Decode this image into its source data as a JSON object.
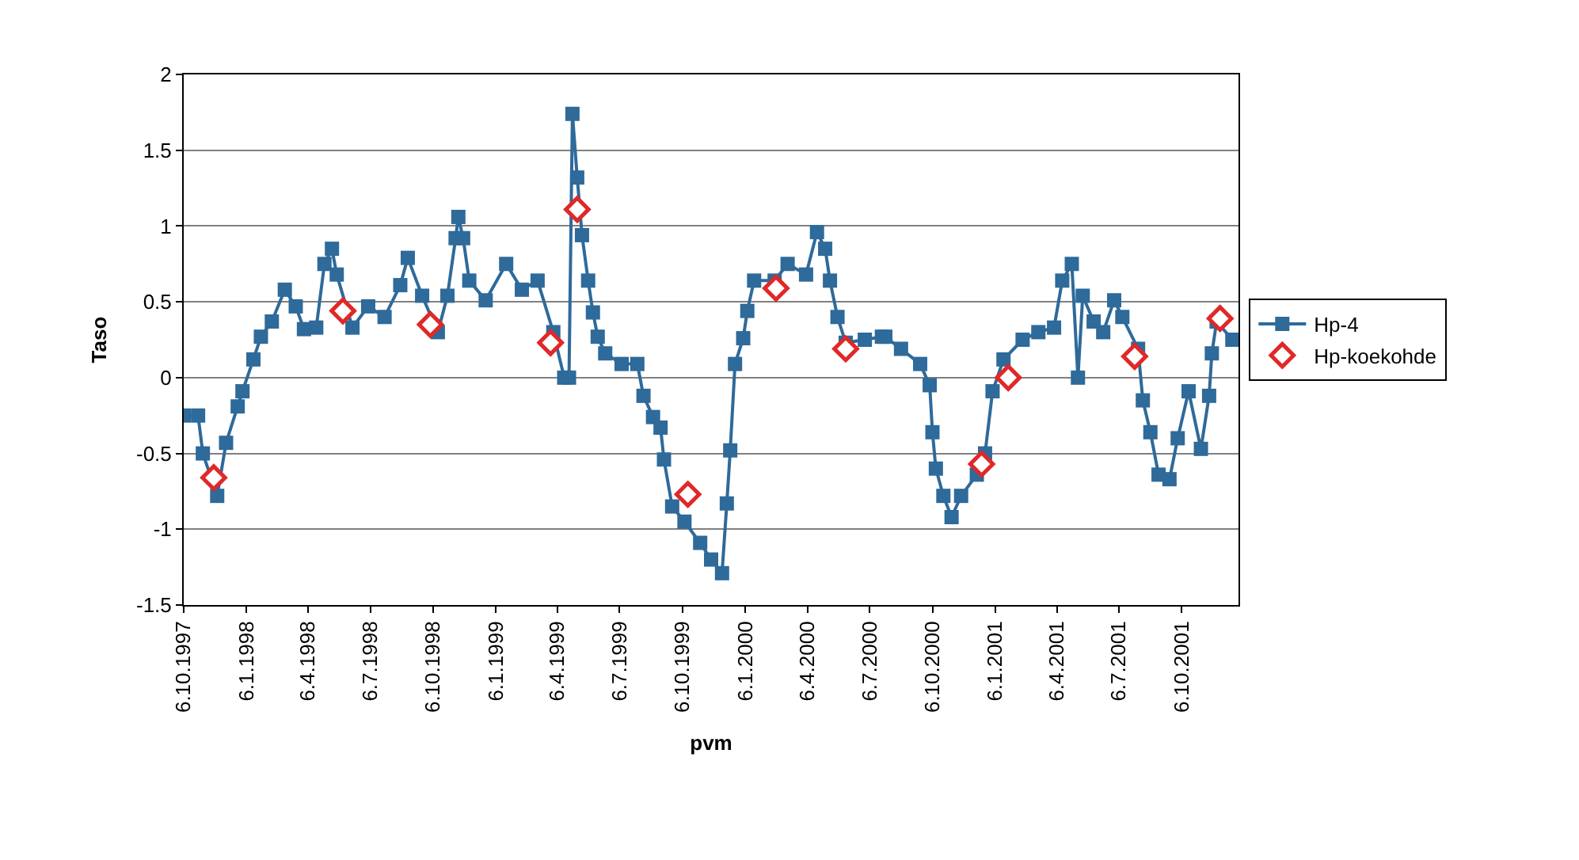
{
  "chart_data": {
    "type": "line",
    "xlabel": "pvm",
    "ylabel": "Taso",
    "xlim": [
      "1997-10-06",
      "2001-12-28"
    ],
    "xticks": [
      {
        "value": "1997-10-06",
        "label": "6.10.1997"
      },
      {
        "value": "1998-01-06",
        "label": "6.1.1998"
      },
      {
        "value": "1998-04-06",
        "label": "6.4.1998"
      },
      {
        "value": "1998-07-06",
        "label": "6.7.1998"
      },
      {
        "value": "1998-10-06",
        "label": "6.10.1998"
      },
      {
        "value": "1999-01-06",
        "label": "6.1.1999"
      },
      {
        "value": "1999-04-06",
        "label": "6.4.1999"
      },
      {
        "value": "1999-07-06",
        "label": "6.7.1999"
      },
      {
        "value": "1999-10-06",
        "label": "6.10.1999"
      },
      {
        "value": "2000-01-06",
        "label": "6.1.2000"
      },
      {
        "value": "2000-04-06",
        "label": "6.4.2000"
      },
      {
        "value": "2000-07-06",
        "label": "6.7.2000"
      },
      {
        "value": "2000-10-06",
        "label": "6.10.2000"
      },
      {
        "value": "2001-01-06",
        "label": "6.1.2001"
      },
      {
        "value": "2001-04-06",
        "label": "6.4.2001"
      },
      {
        "value": "2001-07-06",
        "label": "6.7.2001"
      },
      {
        "value": "2001-10-06",
        "label": "6.10.2001"
      }
    ],
    "ylim": [
      -1.5,
      2
    ],
    "yticks": [
      -1.5,
      -1,
      -0.5,
      0,
      0.5,
      1,
      1.5,
      2
    ],
    "grid": "y",
    "legend": "right",
    "line_style": "solid",
    "series": [
      {
        "name": "Hp-4",
        "color": "#2e6a9a",
        "marker": "square",
        "x": [
          "1997-10-06",
          "1997-10-27",
          "1997-11-03",
          "1997-11-24",
          "1997-12-07",
          "1997-12-24",
          "1997-12-31",
          "1998-01-16",
          "1998-01-27",
          "1998-02-12",
          "1998-03-03",
          "1998-03-19",
          "1998-03-31",
          "1998-04-18",
          "1998-04-30",
          "1998-05-11",
          "1998-05-18",
          "1998-06-10",
          "1998-07-03",
          "1998-07-27",
          "1998-08-19",
          "1998-08-30",
          "1998-09-20",
          "1998-10-13",
          "1998-10-27",
          "1998-11-08",
          "1998-11-12",
          "1998-11-19",
          "1998-11-28",
          "1998-12-22",
          "1999-01-21",
          "1999-02-13",
          "1999-03-08",
          "1999-03-31",
          "1999-04-16",
          "1999-04-23",
          "1999-04-28",
          "1999-05-05",
          "1999-05-12",
          "1999-05-21",
          "1999-05-28",
          "1999-06-04",
          "1999-06-15",
          "1999-07-09",
          "1999-08-01",
          "1999-08-10",
          "1999-08-24",
          "1999-09-04",
          "1999-09-09",
          "1999-09-21",
          "1999-10-09",
          "1999-11-01",
          "1999-11-17",
          "1999-12-03",
          "1999-12-10",
          "1999-12-15",
          "1999-12-22",
          "2000-01-03",
          "2000-01-09",
          "2000-01-19",
          "2000-02-18",
          "2000-03-08",
          "2000-04-04",
          "2000-04-20",
          "2000-05-02",
          "2000-05-09",
          "2000-05-20",
          "2000-06-01",
          "2000-06-29",
          "2000-07-24",
          "2000-07-29",
          "2000-08-21",
          "2000-09-18",
          "2000-10-02",
          "2000-10-06",
          "2000-10-11",
          "2000-10-22",
          "2000-11-03",
          "2000-11-17",
          "2000-12-10",
          "2000-12-22",
          "2001-01-02",
          "2001-01-18",
          "2001-02-15",
          "2001-03-10",
          "2001-04-02",
          "2001-04-14",
          "2001-04-28",
          "2001-05-07",
          "2001-05-14",
          "2001-05-30",
          "2001-06-13",
          "2001-06-29",
          "2001-07-11",
          "2001-08-03",
          "2001-08-10",
          "2001-08-21",
          "2001-09-02",
          "2001-09-18",
          "2001-09-30",
          "2001-10-16",
          "2001-11-03",
          "2001-11-15",
          "2001-11-19",
          "2001-11-26",
          "2001-12-19"
        ],
        "values": [
          -0.25,
          -0.25,
          -0.5,
          -0.78,
          -0.43,
          -0.19,
          -0.09,
          0.12,
          0.27,
          0.37,
          0.58,
          0.47,
          0.32,
          0.33,
          0.75,
          0.85,
          0.68,
          0.33,
          0.47,
          0.4,
          0.61,
          0.79,
          0.54,
          0.3,
          0.54,
          0.92,
          1.06,
          0.92,
          0.64,
          0.51,
          0.75,
          0.58,
          0.64,
          0.3,
          0.0,
          0.0,
          1.74,
          1.32,
          0.94,
          0.64,
          0.43,
          0.27,
          0.16,
          0.09,
          0.09,
          -0.12,
          -0.26,
          -0.33,
          -0.54,
          -0.85,
          -0.95,
          -1.09,
          -1.2,
          -1.29,
          -0.83,
          -0.48,
          0.09,
          0.26,
          0.44,
          0.64,
          0.64,
          0.75,
          0.68,
          0.96,
          0.85,
          0.64,
          0.4,
          0.23,
          0.25,
          0.27,
          0.27,
          0.19,
          0.09,
          -0.05,
          -0.36,
          -0.6,
          -0.78,
          -0.92,
          -0.78,
          -0.64,
          -0.5,
          -0.09,
          0.12,
          0.25,
          0.3,
          0.33,
          0.64,
          0.75,
          0.0,
          0.54,
          0.37,
          0.3,
          0.51,
          0.4,
          0.19,
          -0.15,
          -0.36,
          -0.64,
          -0.67,
          -0.4,
          -0.09,
          -0.47,
          -0.12,
          0.16,
          0.37,
          0.25
        ]
      },
      {
        "name": "Hp-koekohde",
        "type": "scatter",
        "color": "#e02828",
        "marker": "diamond",
        "x": [
          "1997-11-19",
          "1998-05-27",
          "1998-10-02",
          "1999-03-27",
          "1999-05-05",
          "1999-10-14",
          "2000-02-20",
          "2000-06-01",
          "2000-12-17",
          "2001-01-25",
          "2001-07-29",
          "2001-12-01"
        ],
        "values": [
          -0.66,
          0.44,
          0.35,
          0.23,
          1.11,
          -0.77,
          0.59,
          0.19,
          -0.57,
          0.0,
          0.14,
          0.39
        ]
      }
    ]
  }
}
